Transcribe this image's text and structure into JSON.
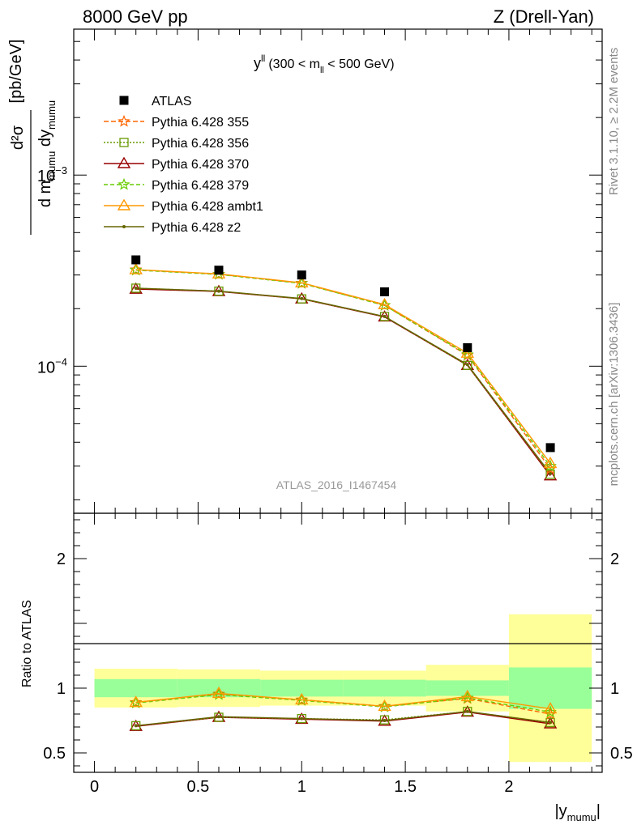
{
  "header": {
    "left": "8000 GeV pp",
    "right": "Z (Drell-Yan)"
  },
  "side_labels": {
    "rivet": "Rivet 3.1.10, ≥ 2.2M events",
    "mcplots": "mcplots.cern.ch [arXiv:1306.3436]"
  },
  "chart_data": {
    "type": "line",
    "title": "y^ll (300 < m_ll < 500 GeV)",
    "title_parts": {
      "main": "y",
      "sup": "ll",
      "pre": "(300 < m",
      "sub": "ll",
      "post": " < 500 GeV)"
    },
    "watermark": "ATLAS_2016_I1467454",
    "xlabel": "|y_mumu|",
    "xlabel_parts": {
      "main": "|y",
      "sub": "mumu",
      "post": "|"
    },
    "ylabel_top": {
      "num": "d²σ",
      "den_main": "d m",
      "den_sub1": "mumu",
      "den_mid": " dy",
      "den_sub2": "mumu",
      "units": "[pb/GeV]"
    },
    "ylabel_ratio": "Ratio to ATLAS",
    "x_range": [
      -0.1,
      2.45
    ],
    "x_ticks": [
      "0",
      "0.5",
      "1",
      "1.5",
      "2"
    ],
    "x_tick_values": [
      0,
      0.5,
      1,
      1.5,
      2
    ],
    "y_top_range": [
      1.7e-05,
      0.0058
    ],
    "y_top_scale": "log",
    "y_top_ticks": [
      {
        "value": 0.0001,
        "base": "10",
        "exp": "−4"
      },
      {
        "value": 0.001,
        "base": "10",
        "exp": "−3"
      }
    ],
    "y_ratio_range": [
      0.35,
      2.35
    ],
    "y_ratio_ticks": [
      "0.5",
      "1",
      "2"
    ],
    "y_ratio_tick_values": [
      0.5,
      1,
      2
    ],
    "bin_edges": [
      0,
      0.4,
      0.8,
      1.2,
      1.6,
      2.0,
      2.4
    ],
    "x": [
      0.2,
      0.6,
      1.0,
      1.4,
      1.8,
      2.2
    ],
    "data": {
      "name": "ATLAS",
      "values": [
        0.00036,
        0.000318,
        0.0003,
        0.000245,
        0.000125,
        3.75e-05
      ],
      "ratio_band_inner": [
        0.07,
        0.07,
        0.065,
        0.065,
        0.06,
        0.16
      ],
      "ratio_band_outer": [
        0.15,
        0.145,
        0.135,
        0.135,
        0.18,
        0.57
      ]
    },
    "legend_position": "top-left",
    "series": [
      {
        "name": "Pythia 6.428 355",
        "color": "#ff6600",
        "marker": "star",
        "dash": "6,3",
        "values": [
          0.00032,
          0.000303,
          0.000272,
          0.000208,
          0.000114,
          2.9e-05
        ],
        "ratio": [
          0.89,
          0.955,
          0.91,
          0.86,
          0.92,
          0.8
        ]
      },
      {
        "name": "Pythia 6.428 356",
        "color": "#669900",
        "marker": "square",
        "dash": "2,2",
        "values": [
          0.000256,
          0.000247,
          0.000225,
          0.000182,
          0.000101,
          2.72e-05
        ],
        "ratio": [
          0.71,
          0.775,
          0.765,
          0.755,
          0.82,
          0.735
        ]
      },
      {
        "name": "Pythia 6.428 370",
        "color": "#990000",
        "marker": "triangle",
        "dash": "",
        "values": [
          0.000253,
          0.000246,
          0.000225,
          0.000181,
          0.000101,
          2.67e-05
        ],
        "ratio": [
          0.705,
          0.775,
          0.76,
          0.745,
          0.815,
          0.725
        ]
      },
      {
        "name": "Pythia 6.428 379",
        "color": "#66cc00",
        "marker": "star",
        "dash": "5,3",
        "values": [
          0.000318,
          0.000302,
          0.000271,
          0.000208,
          0.000115,
          3e-05
        ],
        "ratio": [
          0.885,
          0.95,
          0.905,
          0.855,
          0.925,
          0.815
        ]
      },
      {
        "name": "Pythia 6.428 ambt1",
        "color": "#ff9900",
        "marker": "triangle",
        "dash": "",
        "values": [
          0.00032,
          0.000304,
          0.000273,
          0.00021,
          0.000117,
          3.1e-05
        ],
        "ratio": [
          0.89,
          0.96,
          0.91,
          0.86,
          0.935,
          0.84
        ]
      },
      {
        "name": "Pythia 6.428 z2",
        "color": "#666600",
        "marker": "dot",
        "dash": "",
        "values": [
          0.000256,
          0.000247,
          0.000226,
          0.000182,
          0.000102,
          2.74e-05
        ],
        "ratio": [
          0.71,
          0.78,
          0.765,
          0.75,
          0.82,
          0.735
        ]
      }
    ]
  }
}
